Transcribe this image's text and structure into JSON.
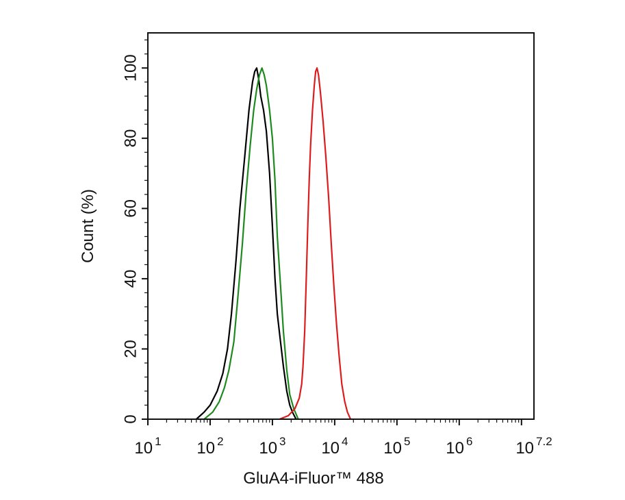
{
  "chart_data": {
    "type": "line",
    "title": "",
    "xlabel": "GluA4-iFluor™ 488",
    "ylabel": "Count  (%)",
    "x_scale": "log",
    "xlim": [
      10,
      15848932
    ],
    "ylim": [
      0,
      110
    ],
    "grid": false,
    "x_ticks": [
      {
        "base": "10",
        "exp": "1"
      },
      {
        "base": "10",
        "exp": "2"
      },
      {
        "base": "10",
        "exp": "3"
      },
      {
        "base": "10",
        "exp": "4"
      },
      {
        "base": "10",
        "exp": "5"
      },
      {
        "base": "10",
        "exp": "6"
      },
      {
        "base": "10",
        "exp": "7.2"
      }
    ],
    "y_ticks": [
      "0",
      "20",
      "40",
      "60",
      "80",
      "100"
    ],
    "series": [
      {
        "color": "#000000",
        "points": [
          [
            60,
            0
          ],
          [
            80,
            2
          ],
          [
            100,
            4
          ],
          [
            130,
            8
          ],
          [
            160,
            13
          ],
          [
            190,
            20
          ],
          [
            220,
            30
          ],
          [
            260,
            45
          ],
          [
            300,
            60
          ],
          [
            360,
            75
          ],
          [
            420,
            88
          ],
          [
            480,
            96
          ],
          [
            520,
            99
          ],
          [
            560,
            100
          ],
          [
            600,
            97
          ],
          [
            650,
            92
          ],
          [
            720,
            88
          ],
          [
            800,
            82
          ],
          [
            900,
            70
          ],
          [
            1000,
            55
          ],
          [
            1100,
            40
          ],
          [
            1200,
            30
          ],
          [
            1350,
            22
          ],
          [
            1500,
            15
          ],
          [
            1700,
            8
          ],
          [
            1900,
            4
          ],
          [
            2100,
            2
          ],
          [
            2400,
            0
          ]
        ]
      },
      {
        "color": "#1e8a1e",
        "points": [
          [
            80,
            0
          ],
          [
            110,
            2
          ],
          [
            140,
            5
          ],
          [
            170,
            9
          ],
          [
            200,
            14
          ],
          [
            240,
            22
          ],
          [
            280,
            35
          ],
          [
            330,
            50
          ],
          [
            380,
            65
          ],
          [
            440,
            78
          ],
          [
            500,
            88
          ],
          [
            560,
            94
          ],
          [
            620,
            98
          ],
          [
            680,
            100
          ],
          [
            740,
            98
          ],
          [
            800,
            95
          ],
          [
            900,
            88
          ],
          [
            1000,
            80
          ],
          [
            1100,
            68
          ],
          [
            1200,
            52
          ],
          [
            1350,
            38
          ],
          [
            1500,
            25
          ],
          [
            1700,
            14
          ],
          [
            1900,
            7
          ],
          [
            2200,
            3
          ],
          [
            2600,
            0
          ]
        ]
      },
      {
        "color": "#dd1c1c",
        "points": [
          [
            1300,
            0
          ],
          [
            1800,
            1
          ],
          [
            2300,
            3
          ],
          [
            2700,
            6
          ],
          [
            2950,
            10
          ],
          [
            3100,
            15
          ],
          [
            3300,
            25
          ],
          [
            3500,
            40
          ],
          [
            3700,
            55
          ],
          [
            3900,
            68
          ],
          [
            4100,
            78
          ],
          [
            4400,
            88
          ],
          [
            4700,
            95
          ],
          [
            4950,
            99
          ],
          [
            5200,
            100
          ],
          [
            5500,
            98
          ],
          [
            5900,
            93
          ],
          [
            6500,
            85
          ],
          [
            7200,
            75
          ],
          [
            8000,
            63
          ],
          [
            8800,
            50
          ],
          [
            9700,
            38
          ],
          [
            10700,
            27
          ],
          [
            11800,
            18
          ],
          [
            13000,
            10
          ],
          [
            14500,
            5
          ],
          [
            16000,
            2
          ],
          [
            18000,
            0
          ]
        ]
      }
    ]
  }
}
